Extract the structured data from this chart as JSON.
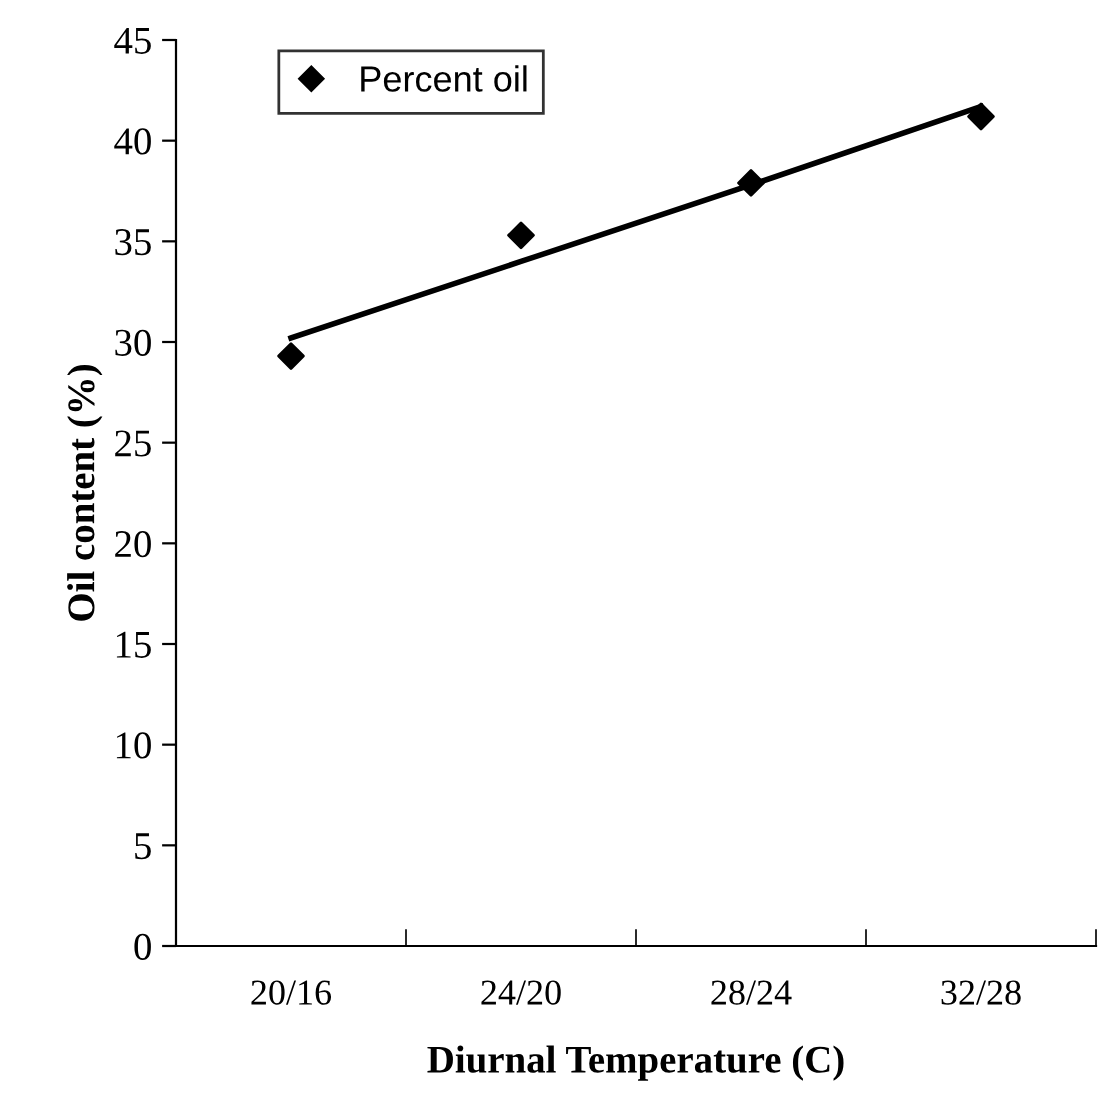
{
  "chart_data": {
    "type": "scatter",
    "xlabel": "Diurnal Temperature (C)",
    "ylabel": "Oil content (%)",
    "categories": [
      "20/16",
      "24/20",
      "28/24",
      "32/28"
    ],
    "series": [
      {
        "name": "Percent oil",
        "color": "#000000",
        "marker": "diamond",
        "values": [
          29.3,
          35.3,
          37.9,
          41.2
        ]
      },
      {
        "type": "line",
        "color": "#000000",
        "line_style": "solid",
        "values": [
          30.2,
          34.0,
          37.8,
          41.7
        ]
      }
    ],
    "ylim": [
      0,
      45
    ],
    "yticks": [
      0,
      5,
      10,
      15,
      20,
      25,
      30,
      35,
      40,
      45
    ],
    "grid": false,
    "legend": "top left"
  }
}
